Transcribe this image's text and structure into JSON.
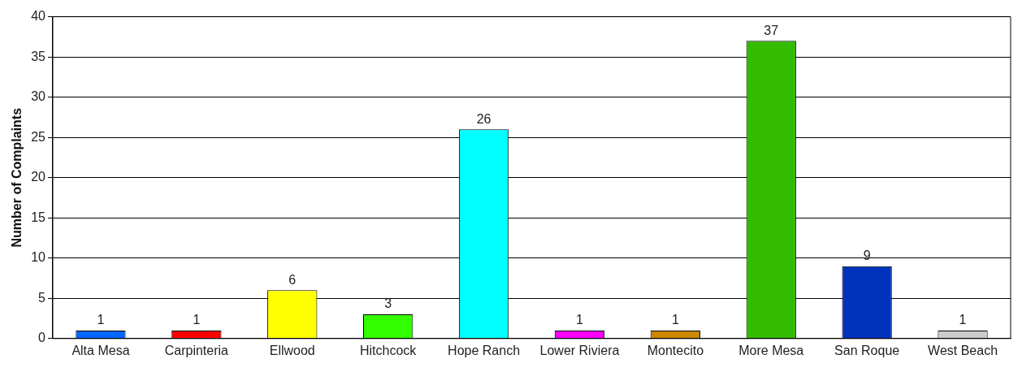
{
  "chart_data": {
    "type": "bar",
    "ylabel": "Number of Complaints",
    "categories": [
      "Alta Mesa",
      "Carpinteria",
      "Ellwood",
      "Hitchcock",
      "Hope Ranch",
      "Lower Riviera",
      "Montecito",
      "More Mesa",
      "San Roque",
      "West Beach"
    ],
    "values": [
      1,
      1,
      6,
      3,
      26,
      1,
      1,
      37,
      9,
      1
    ],
    "colors": [
      "#0066ff",
      "#ff0000",
      "#ffff00",
      "#33ff00",
      "#00ffff",
      "#ff00ff",
      "#cc8800",
      "#33bb00",
      "#0033bb",
      "#cccccc"
    ],
    "ylim": [
      0,
      40
    ],
    "yticks": [
      0,
      5,
      10,
      15,
      20,
      25,
      30,
      35,
      40
    ],
    "grid": "y",
    "data_labels": true
  }
}
